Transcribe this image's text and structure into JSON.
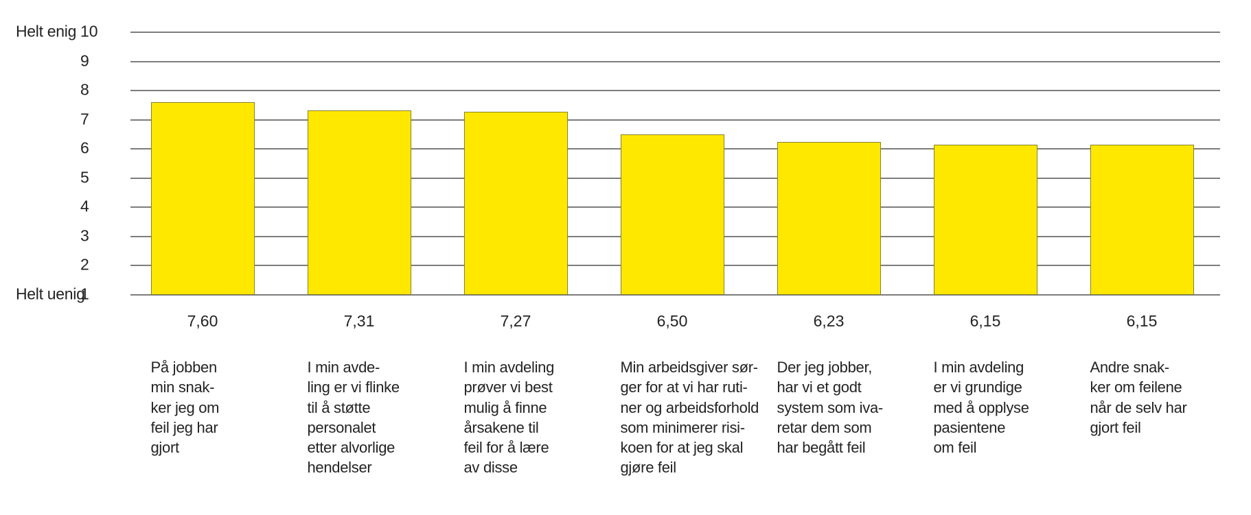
{
  "chart_data": {
    "type": "bar",
    "title": "",
    "grid": true,
    "legend": false,
    "bar_color": "#FFE800",
    "bar_border_color": "#85812B",
    "gridline_color": "#7C7C7C",
    "text_color": "#232323",
    "y_axis": {
      "min": 1,
      "max": 10,
      "ticks": [
        1,
        2,
        3,
        4,
        5,
        6,
        7,
        8,
        9,
        10
      ],
      "top_label": "Helt enig",
      "bottom_label": "Helt uenig"
    },
    "values": [
      7.6,
      7.31,
      7.27,
      6.5,
      6.23,
      6.15,
      6.15
    ],
    "value_labels": [
      "7,60",
      "7,31",
      "7,27",
      "6,50",
      "6,23",
      "6,15",
      "6,15"
    ],
    "categories": [
      "På jobben\nmin snak-\nker jeg om\nfeil jeg har\ngjort",
      "I min avde-\nling er vi flinke\ntil å støtte\npersonalet\netter alvorlige\nhendelser",
      "I min avdeling\nprøver vi best\nmulig å finne\nårsakene til\nfeil for å lære\nav disse",
      "Min arbeidsgiver sør-\nger for at vi har ruti-\nner og arbeidsforhold\nsom minimerer risi-\nkoen for at jeg skal\ngjøre feil",
      "Der jeg jobber,\nhar vi et godt\nsystem som iva-\nretar dem som\nhar begått feil",
      "I min avdeling\ner vi grundige\nmed å opplyse\npasientene\nom feil",
      "Andre snak-\nker om feilene\nnår de selv har\ngjort feil"
    ]
  }
}
